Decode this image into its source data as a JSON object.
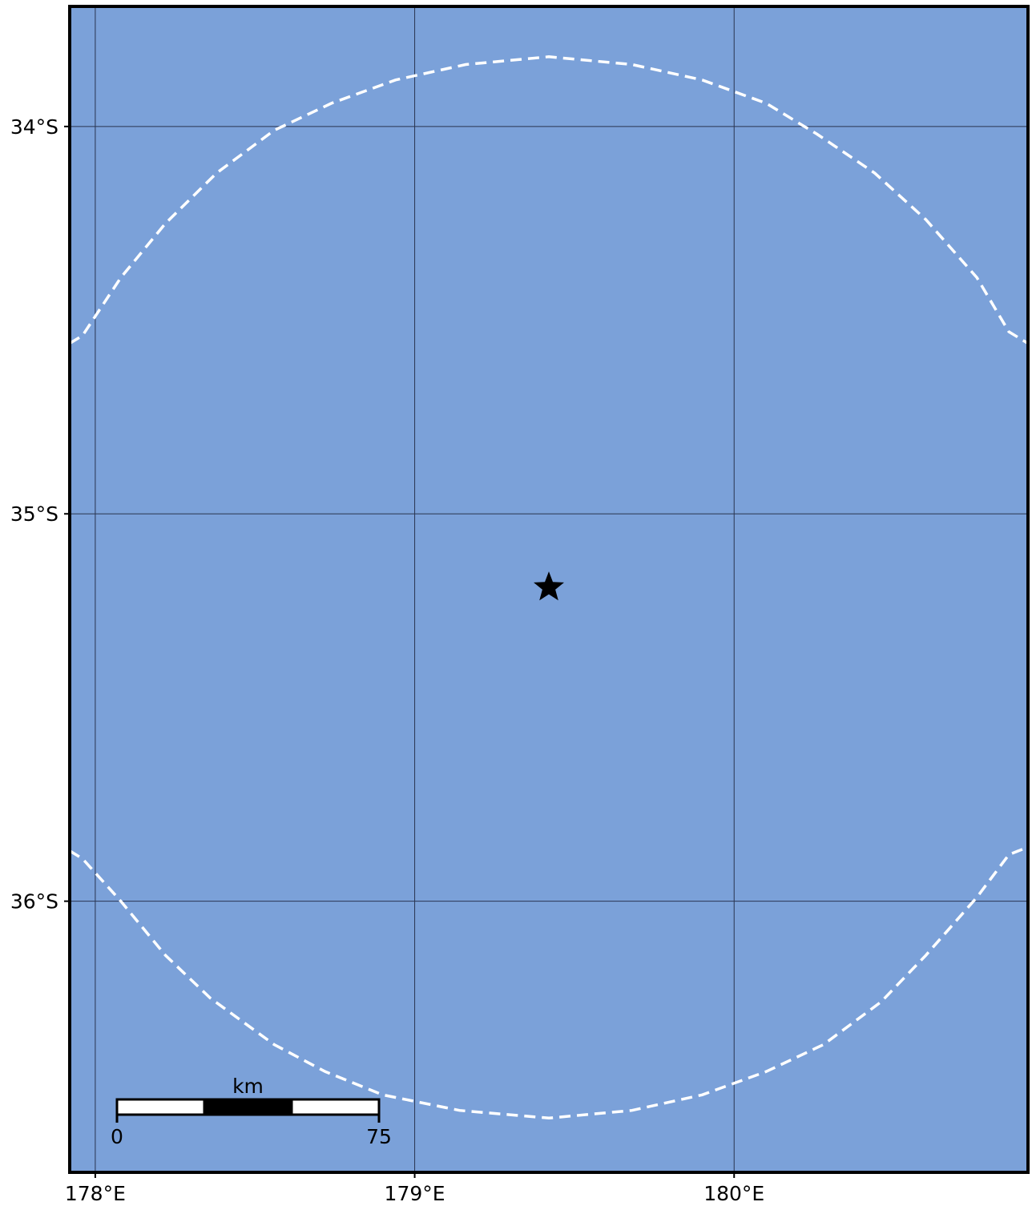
{
  "map": {
    "ocean_color": "#7ba1d9",
    "grid_color": "#2a3550",
    "frame_color": "#000000",
    "circle_color": "#ffffff",
    "extent": {
      "lon_min": 177.92,
      "lon_max": 180.92,
      "lat_max": -33.69,
      "lat_min": -36.7
    },
    "lon_ticks": [
      {
        "value": 178,
        "label": "178°E"
      },
      {
        "value": 179,
        "label": "179°E"
      },
      {
        "value": 180,
        "label": "180°E"
      }
    ],
    "lat_ticks": [
      {
        "value": -34,
        "label": "34°S"
      },
      {
        "value": -35,
        "label": "35°S"
      },
      {
        "value": -36,
        "label": "36°S"
      }
    ],
    "epicenter": {
      "lon": 179.42,
      "lat": -35.19,
      "icon": "star-icon",
      "color": "#000000"
    },
    "radius_circle": {
      "style": "dashed",
      "upper_arc": [
        [
          177.92,
          -34.56
        ],
        [
          177.96,
          -34.54
        ],
        [
          178.08,
          -34.39
        ],
        [
          178.22,
          -34.25
        ],
        [
          178.38,
          -34.12
        ],
        [
          178.56,
          -34.01
        ],
        [
          178.74,
          -33.94
        ],
        [
          178.94,
          -33.88
        ],
        [
          179.16,
          -33.84
        ],
        [
          179.42,
          -33.82
        ],
        [
          179.68,
          -33.84
        ],
        [
          179.9,
          -33.88
        ],
        [
          180.1,
          -33.94
        ],
        [
          180.26,
          -34.02
        ],
        [
          180.44,
          -34.12
        ],
        [
          180.6,
          -34.24
        ],
        [
          180.76,
          -34.39
        ],
        [
          180.86,
          -34.53
        ],
        [
          180.92,
          -34.56
        ]
      ],
      "lower_arc": [
        [
          177.92,
          -35.87
        ],
        [
          177.96,
          -35.89
        ],
        [
          178.08,
          -36.0
        ],
        [
          178.22,
          -36.14
        ],
        [
          178.36,
          -36.25
        ],
        [
          178.56,
          -36.37
        ],
        [
          178.72,
          -36.44
        ],
        [
          178.9,
          -36.5
        ],
        [
          179.14,
          -36.54
        ],
        [
          179.42,
          -36.56
        ],
        [
          179.68,
          -36.54
        ],
        [
          179.9,
          -36.5
        ],
        [
          180.1,
          -36.44
        ],
        [
          180.28,
          -36.37
        ],
        [
          180.46,
          -36.26
        ],
        [
          180.6,
          -36.14
        ],
        [
          180.76,
          -35.99
        ],
        [
          180.86,
          -35.88
        ],
        [
          180.92,
          -35.86
        ]
      ]
    },
    "scale_bar": {
      "unit_label": "km",
      "start_label": "0",
      "end_label": "75",
      "segments": 3
    }
  }
}
